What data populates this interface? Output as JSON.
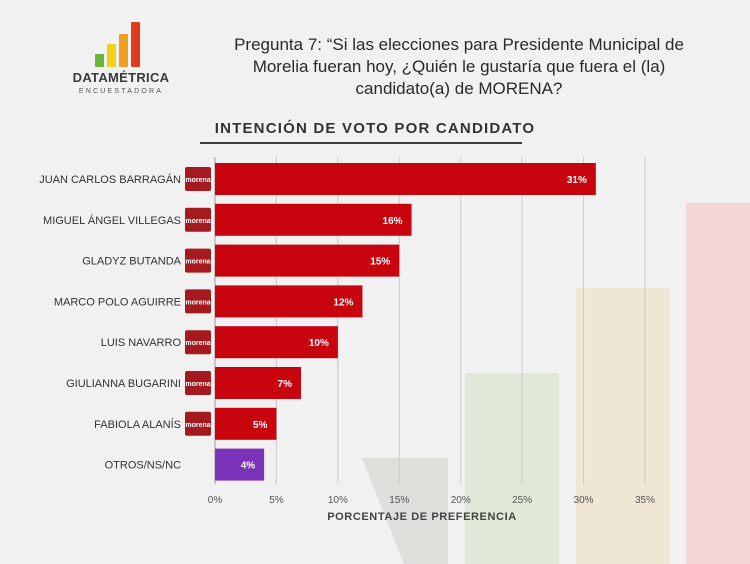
{
  "header": {
    "logo": {
      "name": "DATAMÉTRICA",
      "subtitle": "ENCUESTADORA",
      "icon": "bar-chart-logo-icon",
      "colors": [
        "#e23a1f",
        "#f0a020",
        "#f3d11a",
        "#6bb33a"
      ]
    },
    "question": "Pregunta 7: “Si las elecciones para Presidente Municipal de Morelia fueran hoy, ¿Quién le gustaría que fuera el (la) candidato(a) de MORENA?"
  },
  "chart_data": {
    "type": "bar",
    "orientation": "horizontal",
    "title": "INTENCIÓN DE VOTO POR CANDIDATO",
    "xlabel": "PORCENTAJE DE PREFERENCIA",
    "ylabel": "",
    "categories": [
      "JUAN CARLOS BARRAGÁN",
      "MIGUEL ÁNGEL VILLEGAS",
      "GLADYZ BUTANDA",
      "MARCO POLO AGUIRRE",
      "LUIS NAVARRO",
      "GIULIANNA BUGARINI",
      "FABIOLA ALANÍS",
      "OTROS/NS/NC"
    ],
    "values": [
      31,
      16,
      15,
      12,
      10,
      7,
      5,
      4
    ],
    "data_labels": [
      "31%",
      "16%",
      "15%",
      "12%",
      "10%",
      "7%",
      "5%",
      "4%"
    ],
    "party_badges": [
      "morena",
      "morena",
      "morena",
      "morena",
      "morena",
      "morena",
      "morena",
      ""
    ],
    "xlim": [
      0,
      35
    ],
    "xticks": [
      0,
      5,
      10,
      15,
      20,
      25,
      30,
      35
    ],
    "xtick_labels": [
      "0%",
      "5%",
      "10%",
      "15%",
      "20%",
      "25%",
      "30%",
      "35%"
    ],
    "grid": "vertical",
    "legend": "none",
    "colors": {
      "bar": "#c8050f",
      "bar_other": "#7a32b8",
      "badge": "#a41a1f",
      "grid": "#c9c9c9"
    }
  }
}
